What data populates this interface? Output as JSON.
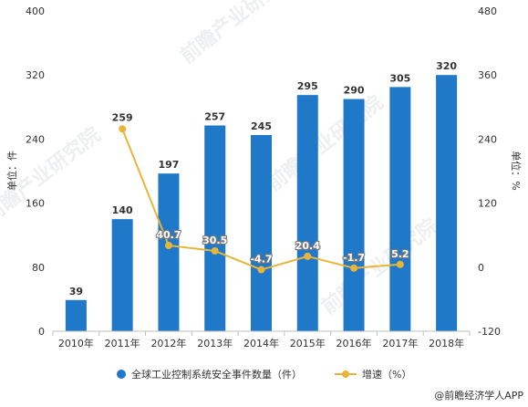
{
  "chart_data": {
    "type": "bar",
    "categories": [
      "2010年",
      "2011年",
      "2012年",
      "2013年",
      "2014年",
      "2015年",
      "2016年",
      "2017年",
      "2018年"
    ],
    "series": [
      {
        "name": "全球工业控制系统安全事件数量（件）",
        "type": "bar",
        "axis": "left",
        "values": [
          39,
          140,
          197,
          257,
          245,
          295,
          290,
          305,
          320
        ],
        "color": "#1f78c8"
      },
      {
        "name": "增速（%）",
        "type": "line",
        "axis": "right",
        "values": [
          null,
          259,
          40.7,
          30.5,
          -4.7,
          20.4,
          -1.7,
          5.2,
          null
        ],
        "labels": [
          null,
          "259",
          "40.7",
          "30.5",
          "-4.7",
          "20.4",
          "-1.7",
          "5.2",
          null
        ],
        "color": "#e8b53a"
      }
    ],
    "bar_labels": [
      "39",
      "140",
      "197",
      "257",
      "245",
      "295",
      "290",
      "305",
      "320"
    ],
    "y_left": {
      "label": "单位：件",
      "ylim": [
        0,
        400
      ],
      "ticks": [
        "0",
        "80",
        "160",
        "240",
        "320",
        "400"
      ]
    },
    "y_right": {
      "label": "单位：%",
      "ylim": [
        -120,
        480
      ],
      "ticks": [
        "-120",
        "0",
        "120",
        "240",
        "360",
        "480"
      ]
    },
    "legend_position": "bottom",
    "grid": false
  },
  "source": "@前瞻经济学人APP",
  "watermark": "前瞻产业研究院"
}
